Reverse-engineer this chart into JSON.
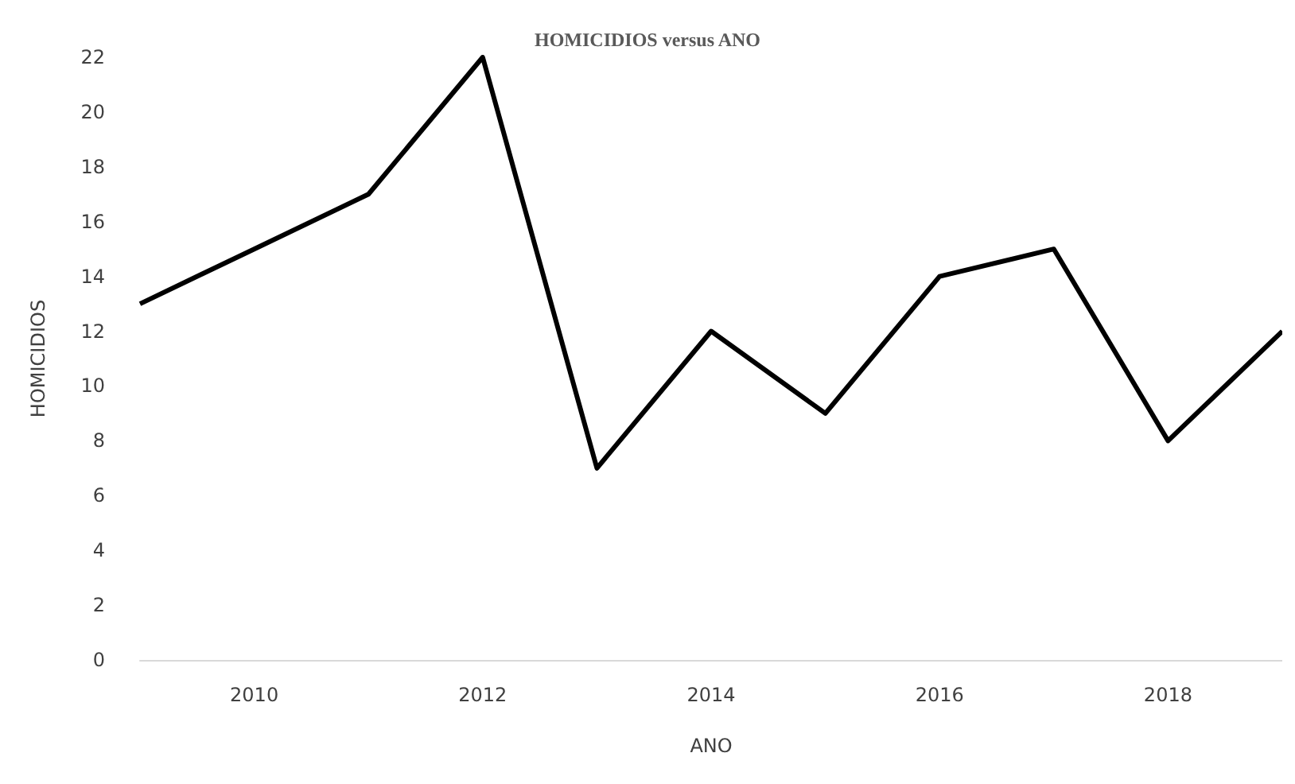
{
  "chart_data": {
    "type": "line",
    "title": "HOMICIDIOS versus ANO",
    "xlabel": "ANO",
    "ylabel": "HOMICIDIOS",
    "x": [
      2009,
      2010,
      2011,
      2012,
      2013,
      2014,
      2015,
      2016,
      2017,
      2018,
      2019
    ],
    "series": [
      {
        "color": "#000000",
        "values": [
          13,
          15,
          17,
          22,
          7,
          12,
          9,
          14,
          15,
          8,
          12
        ]
      }
    ],
    "xlim": [
      2009,
      2019
    ],
    "xticks": [
      2010,
      2012,
      2014,
      2016,
      2018
    ],
    "ylim": [
      0,
      22
    ],
    "yticks": [
      0,
      2,
      4,
      6,
      8,
      10,
      12,
      14,
      16,
      18,
      20,
      22
    ],
    "marker": "none",
    "line_style": "solid"
  }
}
